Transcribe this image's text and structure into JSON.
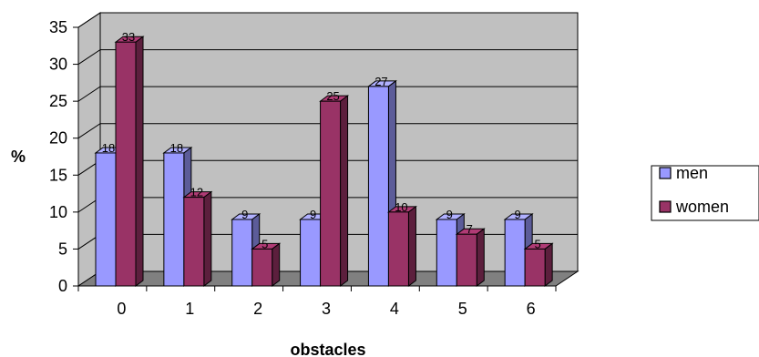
{
  "chart_data": {
    "type": "bar",
    "title": "",
    "xlabel": "obstacles",
    "ylabel": "%",
    "ylim": [
      0,
      35
    ],
    "yticks": [
      0,
      5,
      10,
      15,
      20,
      25,
      30,
      35
    ],
    "categories": [
      "0",
      "1",
      "2",
      "3",
      "4",
      "5",
      "6"
    ],
    "series": [
      {
        "name": "men",
        "values": [
          18,
          18,
          9,
          9,
          27,
          9,
          9
        ],
        "color": "#9999ff"
      },
      {
        "name": "women",
        "values": [
          33,
          12,
          5,
          25,
          10,
          7,
          5
        ],
        "color": "#993366"
      }
    ],
    "grid": true,
    "legend_position": "right",
    "style": "3d-clustered-column",
    "colors": {
      "wall": "#c0c0c0",
      "floor": "#808080",
      "gridline": "#000000"
    }
  }
}
